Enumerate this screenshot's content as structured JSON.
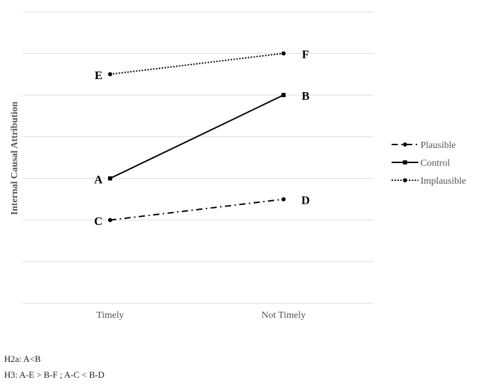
{
  "chart_data": {
    "type": "line",
    "title": "",
    "xlabel": "",
    "ylabel": "Internal Causal Attribution",
    "categories": [
      "Timely",
      "Not Timely"
    ],
    "ylim": [
      0,
      7
    ],
    "grid": true,
    "legend_position": "right",
    "series": [
      {
        "name": "Plausible",
        "values": [
          2,
          2.5
        ],
        "point_labels": [
          "C",
          "D"
        ],
        "style": "dash-dot",
        "marker": "circle"
      },
      {
        "name": "Control",
        "values": [
          3,
          5
        ],
        "point_labels": [
          "A",
          "B"
        ],
        "style": "solid",
        "marker": "square"
      },
      {
        "name": "Implausible",
        "values": [
          5.5,
          6
        ],
        "point_labels": [
          "E",
          "F"
        ],
        "style": "dotted",
        "marker": "circle"
      }
    ]
  },
  "notes": {
    "h2a": "H2a: A<B",
    "h3": "H3:  A-E > B-F ; A-C < B-D"
  }
}
